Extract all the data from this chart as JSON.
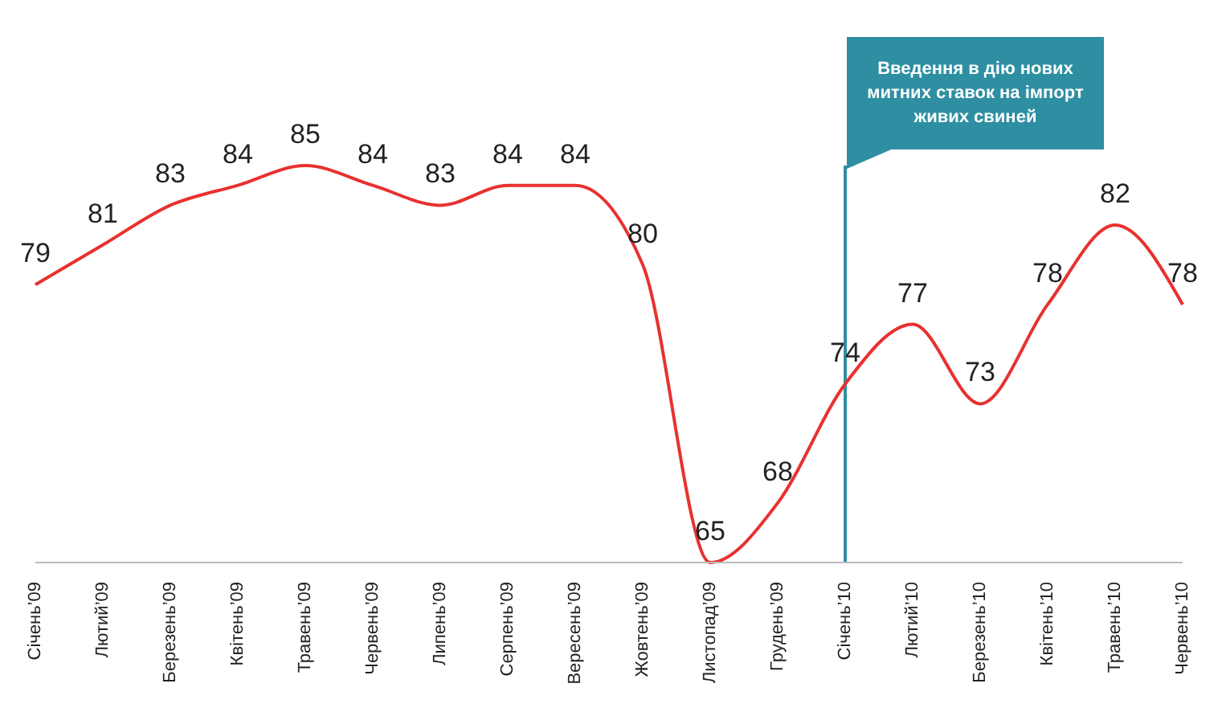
{
  "chart_data": {
    "type": "line",
    "categories": [
      "Січень’09",
      "Лютий’09",
      "Березень’09",
      "Квітень’09",
      "Травень’09",
      "Червень’09",
      "Липень’09",
      "Серпень’09",
      "Вересень’09",
      "Жовтень’09",
      "Листопад’09",
      "Грудень’09",
      "Січень’10",
      "Лютий’10",
      "Березень’10",
      "Квітень’10",
      "Травень’10",
      "Червень’10"
    ],
    "series": [
      {
        "color": "#e8312f",
        "values": [
          79,
          81,
          83,
          84,
          85,
          84,
          83,
          84,
          84,
          80,
          65,
          68,
          74,
          77,
          73,
          78,
          82,
          78
        ]
      }
    ],
    "data_labels": true,
    "marker": "none",
    "grid": false,
    "legend": false,
    "ref_lines": [
      {
        "axis": "x",
        "value": "Січень’10",
        "label": "Введення в дію нових митних ставок на імпорт живих свиней",
        "color": "#2e8fa3"
      }
    ]
  }
}
